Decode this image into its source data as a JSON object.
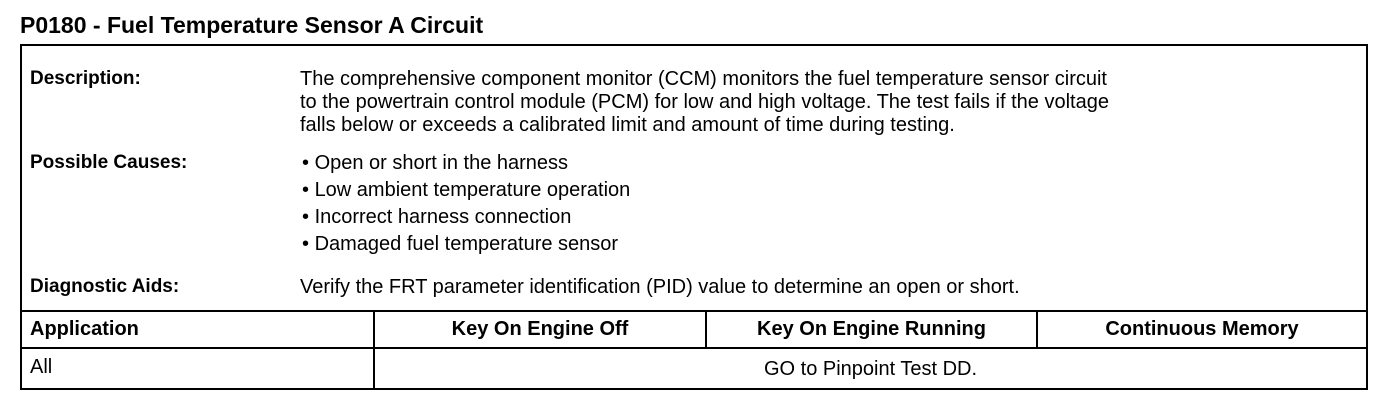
{
  "title": "P0180 - Fuel Temperature Sensor A Circuit",
  "description": {
    "label": "Description:",
    "lines": [
      "The comprehensive component monitor (CCM) monitors the fuel temperature sensor circuit",
      "to the powertrain control module (PCM) for low and high voltage. The test fails if the voltage",
      "falls below or exceeds a calibrated limit and amount of time during testing."
    ]
  },
  "possible_causes": {
    "label": "Possible Causes:",
    "items": [
      "Open or short in the harness",
      "Low ambient temperature operation",
      "Incorrect harness connection",
      "Damaged fuel temperature sensor"
    ]
  },
  "diagnostic_aids": {
    "label": "Diagnostic Aids:",
    "text": "Verify the FRT parameter identification (PID) value to determine an open or short."
  },
  "table": {
    "headers": [
      "Application",
      "Key On Engine Off",
      "Key On Engine Running",
      "Continuous Memory"
    ],
    "row": {
      "application": "All",
      "action": "GO to Pinpoint Test DD."
    }
  }
}
